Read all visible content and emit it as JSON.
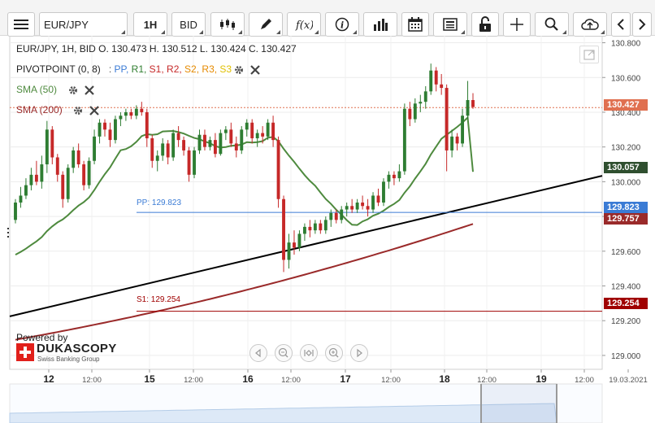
{
  "toolbar": {
    "instrument": "EUR/JPY",
    "timeframe": "1H",
    "price_side": "BID"
  },
  "legend": {
    "ohlc": "EUR/JPY, 1H, BID   O. 130.473 H. 130.512 L. 130.424 C. 130.427",
    "pivot_title": "PIVOTPOINT (0, 8)",
    "pivot_items": [
      {
        "label": "PP,",
        "color": "#3a7bd5"
      },
      {
        "label": "R1,",
        "color": "#2f7d2f"
      },
      {
        "label": "S1,",
        "color": "#c62828"
      },
      {
        "label": "R2,",
        "color": "#c62828"
      },
      {
        "label": "S2,",
        "color": "#e68a00"
      },
      {
        "label": "R3,",
        "color": "#e68a00"
      },
      {
        "label": "S3",
        "color": "#e0c000"
      }
    ],
    "sma50": "SMA (50)",
    "sma200": "SMA (200)"
  },
  "branding": {
    "powered_by": "Powered by",
    "name": "DUKASCOPY",
    "tagline": "Swiss Banking Group"
  },
  "colors": {
    "up": "#2e7d32",
    "down": "#c62828",
    "sma50": "#4e8a3e",
    "sma200": "#9a2a2a",
    "trend": "#000000",
    "pp": "#3a7bd5",
    "s1": "#a00000",
    "current": "#e07050"
  },
  "chart_data": {
    "type": "candlestick",
    "ylim": [
      128.92,
      130.84
    ],
    "y_ticks": [
      "130.800",
      "130.600",
      "130.400",
      "130.200",
      "130.000",
      "129.800",
      "129.600",
      "129.400",
      "129.200",
      "129.000"
    ],
    "x_ticks": [
      "12",
      "12:00",
      "15",
      "12:00",
      "16",
      "12:00",
      "17",
      "12:00",
      "18",
      "12:00",
      "19",
      "12:00",
      "19.03.2021"
    ],
    "last_price": "130.427",
    "sma50_value": "130.057",
    "pp_value": "129.823",
    "sma200_value": "129.757",
    "s1_value": "129.254",
    "pp_label": "PP: 129.823",
    "s1_label": "S1: 129.254",
    "pivot_levels": {
      "pp": 129.823,
      "s1": 129.254
    },
    "trendline": [
      129.225,
      130.034
    ],
    "candles": [
      [
        129.78,
        129.9,
        129.76,
        129.88
      ],
      [
        129.88,
        129.97,
        129.85,
        129.92
      ],
      [
        129.92,
        130.02,
        129.9,
        129.98
      ],
      [
        129.98,
        130.08,
        129.95,
        130.04
      ],
      [
        130.04,
        130.12,
        129.98,
        130.0
      ],
      [
        130.0,
        130.15,
        129.96,
        130.1
      ],
      [
        130.1,
        130.35,
        130.05,
        130.3
      ],
      [
        130.3,
        130.32,
        130.1,
        130.14
      ],
      [
        130.14,
        130.16,
        130.0,
        130.04
      ],
      [
        130.04,
        130.06,
        129.85,
        129.9
      ],
      [
        129.9,
        130.1,
        129.88,
        130.08
      ],
      [
        130.08,
        130.2,
        130.05,
        130.18
      ],
      [
        130.18,
        130.22,
        130.08,
        130.1
      ],
      [
        130.1,
        130.12,
        129.95,
        129.98
      ],
      [
        129.98,
        130.14,
        129.96,
        130.12
      ],
      [
        130.12,
        130.3,
        130.1,
        130.26
      ],
      [
        130.26,
        130.36,
        130.22,
        130.34
      ],
      [
        130.34,
        130.36,
        130.26,
        130.3
      ],
      [
        130.3,
        130.34,
        130.2,
        130.24
      ],
      [
        130.24,
        130.38,
        130.22,
        130.36
      ],
      [
        130.36,
        130.4,
        130.32,
        130.38
      ],
      [
        130.38,
        130.42,
        130.35,
        130.4
      ],
      [
        130.4,
        130.42,
        130.36,
        130.38
      ],
      [
        130.38,
        130.44,
        130.36,
        130.42
      ],
      [
        130.42,
        130.46,
        130.38,
        130.4
      ],
      [
        130.4,
        130.42,
        130.2,
        130.25
      ],
      [
        130.25,
        130.27,
        130.08,
        130.12
      ],
      [
        130.12,
        130.18,
        130.06,
        130.15
      ],
      [
        130.15,
        130.25,
        130.12,
        130.22
      ],
      [
        130.22,
        130.24,
        130.1,
        130.14
      ],
      [
        130.14,
        130.3,
        130.12,
        130.28
      ],
      [
        130.28,
        130.32,
        130.2,
        130.24
      ],
      [
        130.24,
        130.26,
        130.15,
        130.18
      ],
      [
        130.18,
        130.2,
        130.0,
        130.04
      ],
      [
        130.04,
        130.2,
        130.02,
        130.18
      ],
      [
        130.18,
        130.3,
        130.16,
        130.27
      ],
      [
        130.27,
        130.3,
        130.18,
        130.2
      ],
      [
        130.2,
        130.26,
        130.18,
        130.24
      ],
      [
        130.24,
        130.28,
        130.14,
        130.16
      ],
      [
        130.16,
        130.3,
        130.15,
        130.28
      ],
      [
        130.28,
        130.32,
        130.24,
        130.3
      ],
      [
        130.3,
        130.34,
        130.2,
        130.22
      ],
      [
        130.22,
        130.26,
        130.14,
        130.18
      ],
      [
        130.18,
        130.32,
        130.16,
        130.3
      ],
      [
        130.3,
        130.36,
        130.26,
        130.34
      ],
      [
        130.34,
        130.36,
        130.22,
        130.25
      ],
      [
        130.25,
        130.3,
        130.2,
        130.28
      ],
      [
        130.28,
        130.32,
        130.22,
        130.26
      ],
      [
        130.26,
        130.36,
        130.24,
        130.34
      ],
      [
        130.34,
        130.38,
        130.2,
        130.24
      ],
      [
        130.24,
        130.26,
        129.85,
        129.9
      ],
      [
        129.9,
        129.92,
        129.48,
        129.55
      ],
      [
        129.55,
        129.7,
        129.5,
        129.65
      ],
      [
        129.65,
        129.72,
        129.58,
        129.62
      ],
      [
        129.62,
        129.72,
        129.6,
        129.7
      ],
      [
        129.7,
        129.76,
        129.66,
        129.74
      ],
      [
        129.74,
        129.78,
        129.68,
        129.72
      ],
      [
        129.72,
        129.78,
        129.7,
        129.76
      ],
      [
        129.76,
        129.78,
        129.7,
        129.72
      ],
      [
        129.72,
        129.8,
        129.7,
        129.78
      ],
      [
        129.78,
        129.84,
        129.74,
        129.82
      ],
      [
        129.82,
        129.84,
        129.76,
        129.78
      ],
      [
        129.78,
        129.86,
        129.76,
        129.84
      ],
      [
        129.84,
        129.88,
        129.8,
        129.86
      ],
      [
        129.86,
        129.9,
        129.82,
        129.84
      ],
      [
        129.84,
        129.9,
        129.82,
        129.88
      ],
      [
        129.88,
        129.92,
        129.84,
        129.86
      ],
      [
        129.86,
        129.9,
        129.8,
        129.84
      ],
      [
        129.84,
        129.94,
        129.82,
        129.92
      ],
      [
        129.92,
        129.96,
        129.86,
        129.88
      ],
      [
        129.88,
        130.02,
        129.86,
        130.0
      ],
      [
        130.0,
        130.06,
        129.96,
        130.04
      ],
      [
        130.04,
        130.06,
        129.98,
        130.02
      ],
      [
        130.02,
        130.1,
        130.0,
        130.06
      ],
      [
        130.06,
        130.45,
        130.04,
        130.42
      ],
      [
        130.42,
        130.46,
        130.32,
        130.36
      ],
      [
        130.36,
        130.48,
        130.34,
        130.45
      ],
      [
        130.45,
        130.5,
        130.4,
        130.46
      ],
      [
        130.46,
        130.55,
        130.42,
        130.52
      ],
      [
        130.52,
        130.68,
        130.5,
        130.64
      ],
      [
        130.64,
        130.66,
        130.52,
        130.56
      ],
      [
        130.56,
        130.62,
        130.5,
        130.54
      ],
      [
        130.54,
        130.56,
        130.06,
        130.18
      ],
      [
        130.18,
        130.3,
        130.14,
        130.26
      ],
      [
        130.26,
        130.28,
        130.18,
        130.22
      ],
      [
        130.22,
        130.42,
        130.2,
        130.38
      ],
      [
        130.38,
        130.58,
        130.36,
        130.47
      ],
      [
        130.47,
        130.51,
        130.42,
        130.43
      ]
    ]
  }
}
